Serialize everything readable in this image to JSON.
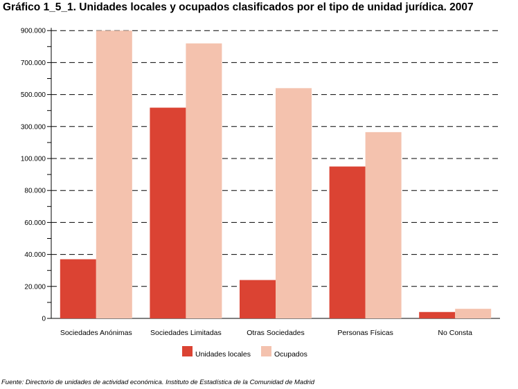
{
  "title": "Gráfico 1_5_1. Unidades locales y ocupados clasificados por el tipo de unidad jurídica. 2007",
  "source": "Fuente: Directorio de unidades de actividad económica. Instituto de Estadística de la Comunidad de Madrid",
  "chart_data": {
    "type": "bar",
    "categories": [
      "Sociedades Anónimas",
      "Sociedades Limitadas",
      "Otras Sociedades",
      "Personas Físicas",
      "No Consta"
    ],
    "y_ticks": [
      "0",
      "20.000",
      "40.000",
      "60.000",
      "80.000",
      "100.000",
      "300.000",
      "500.000",
      "700.000",
      "900.000"
    ],
    "y_scale": "broken: linear 0–100.000 in steps of 20.000, then 100.000–900.000 in steps of 200.000",
    "series": [
      {
        "name": "Unidades locales",
        "color": "#db4333",
        "values": [
          37000,
          418000,
          24000,
          95000,
          4000
        ]
      },
      {
        "name": "Ocupados",
        "color": "#f4c2ae",
        "values": [
          900000,
          820000,
          540000,
          265000,
          6000
        ]
      }
    ],
    "legend": "bottom-center",
    "grid": "dashed horizontal"
  }
}
